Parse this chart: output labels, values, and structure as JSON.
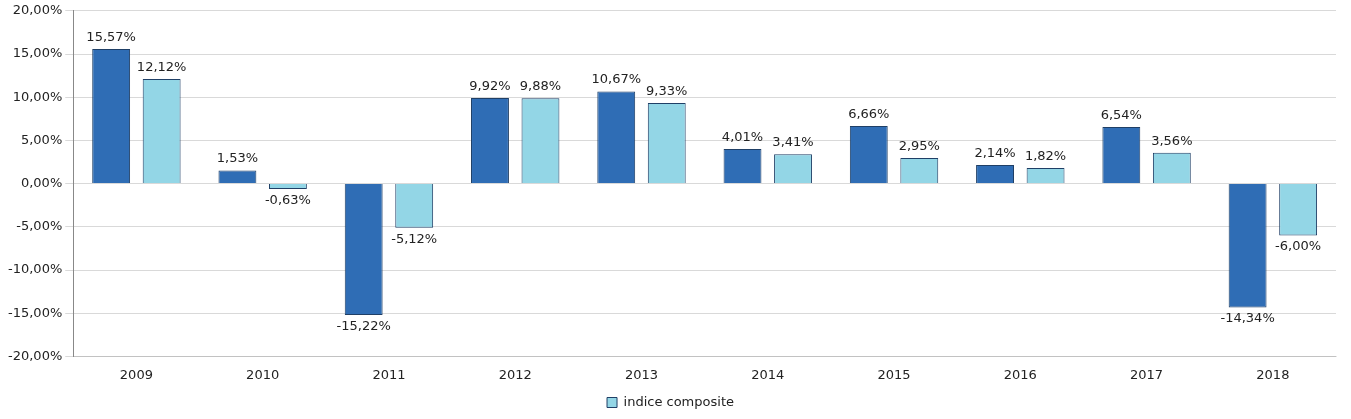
{
  "chart_data": {
    "type": "bar",
    "categories": [
      "2009",
      "2010",
      "2011",
      "2012",
      "2013",
      "2014",
      "2015",
      "2016",
      "2017",
      "2018"
    ],
    "series": [
      {
        "color": "#2f6db5",
        "values": [
          15.57,
          1.53,
          -15.22,
          9.92,
          10.67,
          4.01,
          6.66,
          2.14,
          6.54,
          -14.34
        ],
        "value_labels": [
          "15,57%",
          "1,53%",
          "-15,22%",
          "9,92%",
          "10,67%",
          "4,01%",
          "6,66%",
          "2,14%",
          "6,54%",
          "-14,34%"
        ]
      },
      {
        "name": "indice composite",
        "color": "#93d6e6",
        "values": [
          12.12,
          -0.63,
          -5.12,
          9.88,
          9.33,
          3.41,
          2.95,
          1.82,
          3.56,
          -6.0
        ],
        "value_labels": [
          "12,12%",
          "-0,63%",
          "-5,12%",
          "9,88%",
          "9,33%",
          "3,41%",
          "2,95%",
          "1,82%",
          "3,56%",
          "-6,00%"
        ]
      }
    ],
    "ylim": [
      -20,
      20
    ],
    "yticks": [
      {
        "value": -20,
        "label": "-20,00%"
      },
      {
        "value": -15,
        "label": "-15,00%"
      },
      {
        "value": -10,
        "label": "-10,00%"
      },
      {
        "value": -5,
        "label": "-5,00%"
      },
      {
        "value": 0,
        "label": "0,00%"
      },
      {
        "value": 5,
        "label": "5,00%"
      },
      {
        "value": 10,
        "label": "10,00%"
      },
      {
        "value": 15,
        "label": "15,00%"
      },
      {
        "value": 20,
        "label": "20,00%"
      }
    ],
    "grid": "y",
    "legend": "bottom"
  }
}
